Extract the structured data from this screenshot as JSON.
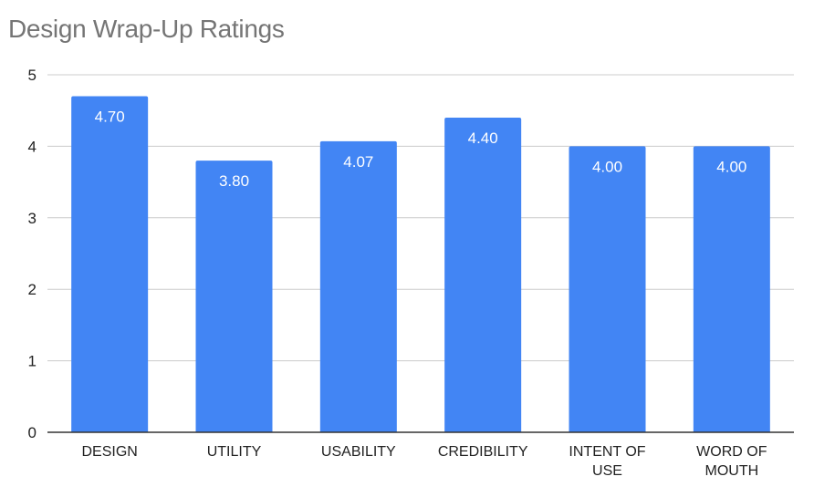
{
  "chart_data": {
    "type": "bar",
    "title": "Design Wrap-Up Ratings",
    "xlabel": "",
    "ylabel": "",
    "categories": [
      "DESIGN",
      "UTILITY",
      "USABILITY",
      "CREDIBILITY",
      "INTENT OF USE",
      "WORD OF MOUTH"
    ],
    "category_lines": [
      [
        "DESIGN"
      ],
      [
        "UTILITY"
      ],
      [
        "USABILITY"
      ],
      [
        "CREDIBILITY"
      ],
      [
        "INTENT OF",
        "USE"
      ],
      [
        "WORD OF",
        "MOUTH"
      ]
    ],
    "values": [
      4.7,
      3.8,
      4.07,
      4.4,
      4.0,
      4.0
    ],
    "value_labels": [
      "4.70",
      "3.80",
      "4.07",
      "4.40",
      "4.00",
      "4.00"
    ],
    "ylim": [
      0,
      5
    ],
    "yticks": [
      0,
      1,
      2,
      3,
      4,
      5
    ],
    "grid": true,
    "legend": "none",
    "colors": {
      "bar": "#4285f4",
      "title": "#757575",
      "grid": "#cccccc",
      "axis": "#333333",
      "value_label": "#ffffff",
      "tick_label": "#222222"
    }
  }
}
